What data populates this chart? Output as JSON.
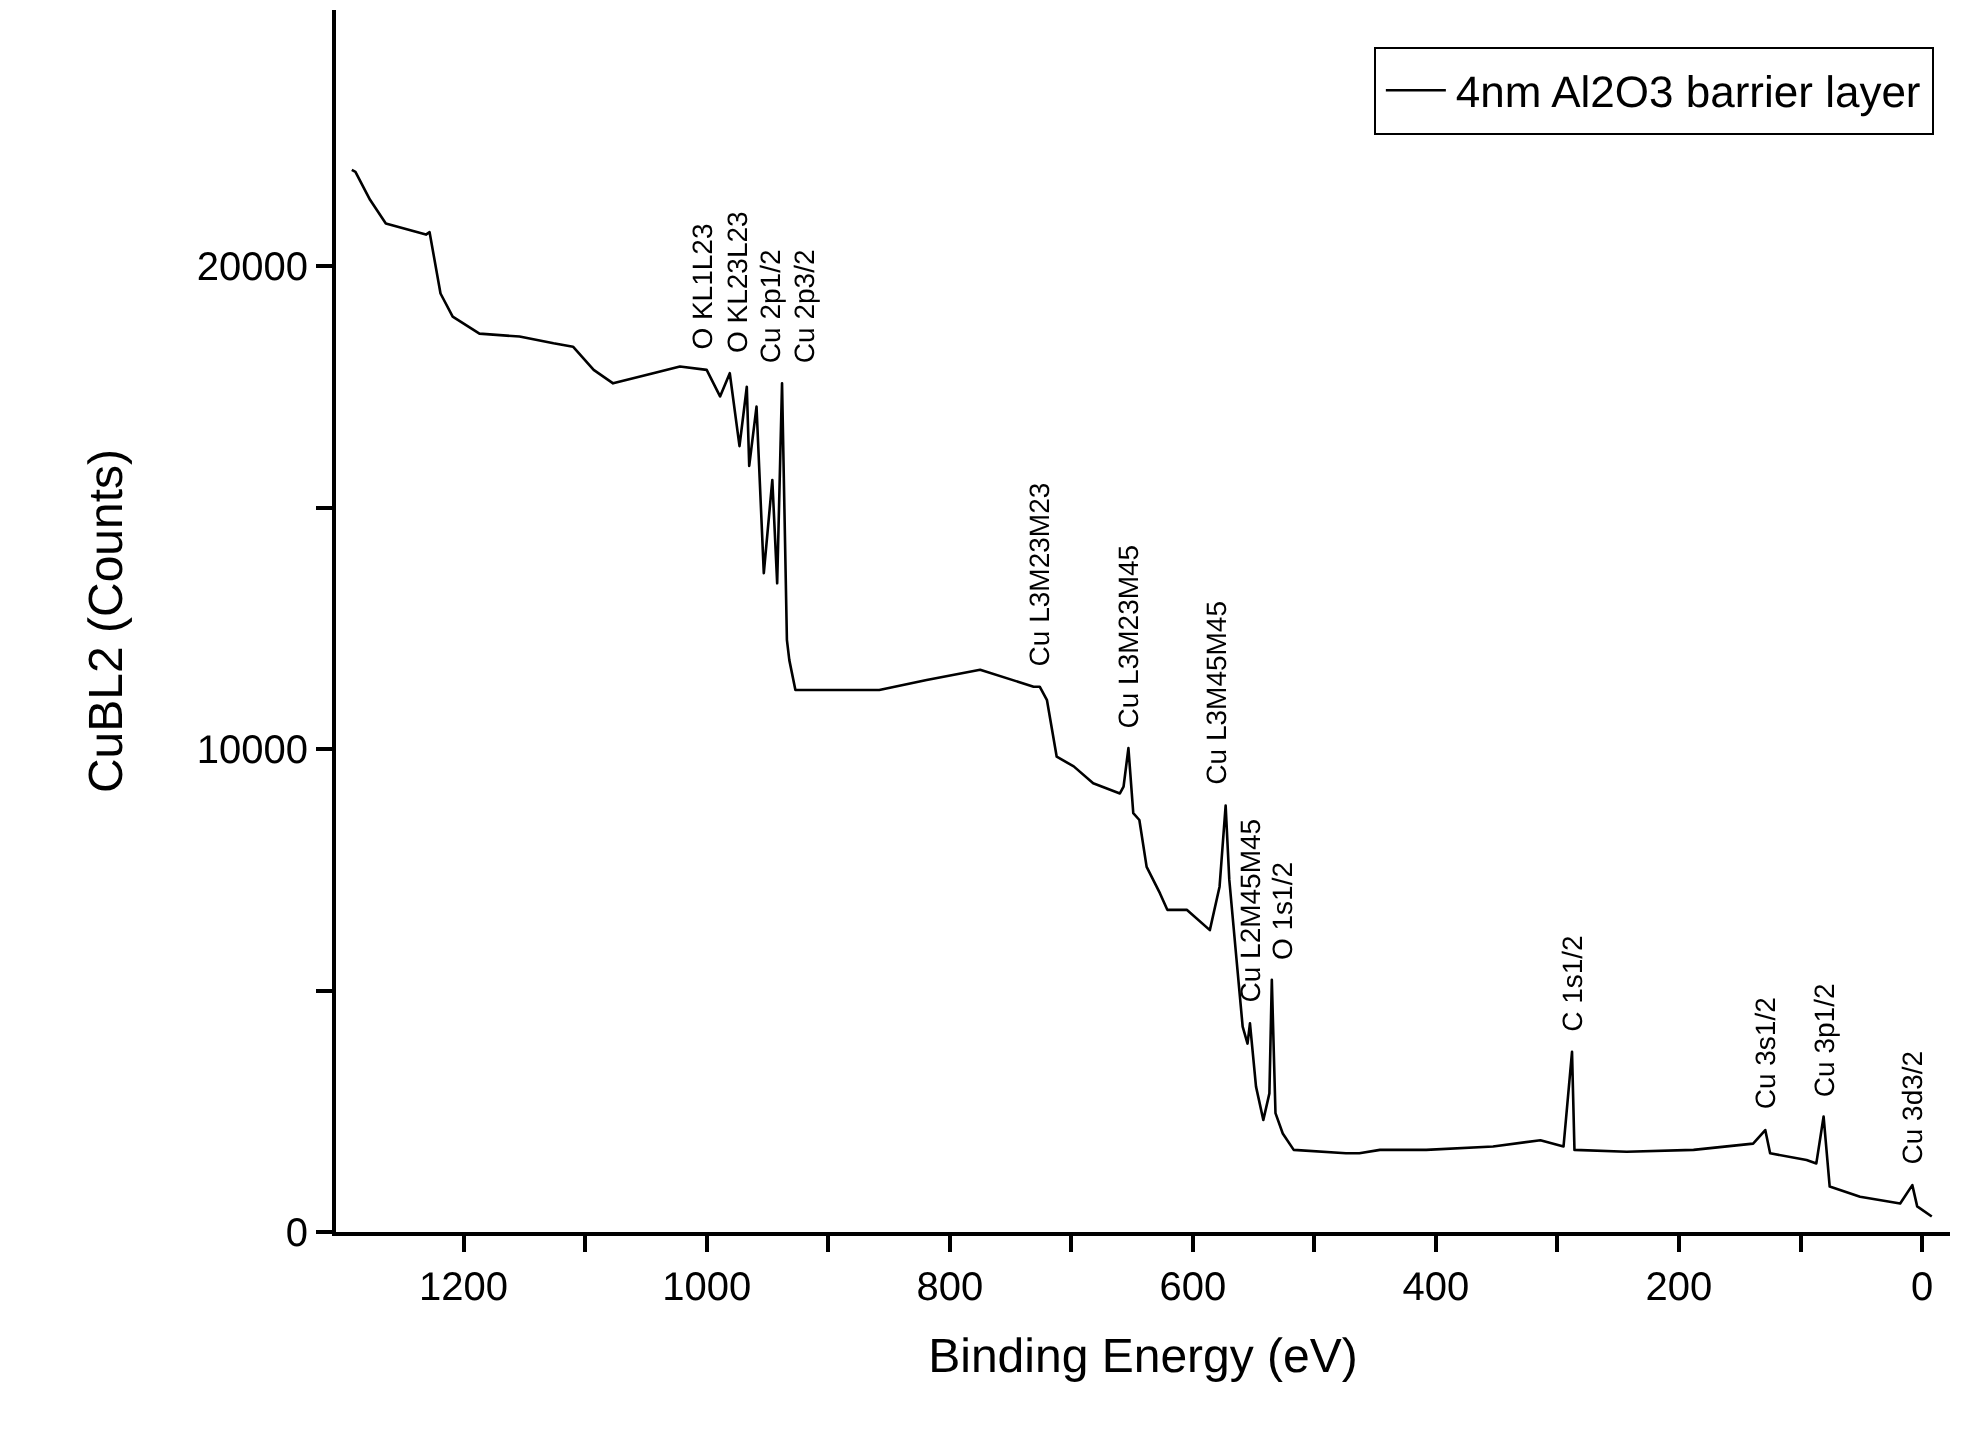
{
  "chart_data": {
    "type": "line",
    "xlabel": "Binding Energy (eV)",
    "ylabel": "CuBL2 (Counts)",
    "xlim": [
      1305,
      -23
    ],
    "ylim": [
      0,
      25300
    ],
    "xticks": [
      1200,
      {
        "value": 1100,
        "label": null
      },
      1000,
      {
        "value": 900,
        "label": null
      },
      800,
      {
        "value": 700,
        "label": null
      },
      600,
      {
        "value": 500,
        "label": null
      },
      400,
      {
        "value": 300,
        "label": null
      },
      200,
      {
        "value": 100,
        "label": null
      },
      0
    ],
    "yticks": [
      0,
      {
        "value": 5000,
        "label": null
      },
      10000,
      {
        "value": 15000,
        "label": null
      },
      20000
    ],
    "legend": "top right",
    "marker": "none",
    "line_style": "solid",
    "series": [
      {
        "name": "4nm Al2O3 barrier layer",
        "color": "#000000",
        "x": [
          1292,
          1289,
          1277,
          1264,
          1231,
          1228,
          1219,
          1209,
          1187,
          1154,
          1126,
          1110,
          1093,
          1077,
          1044,
          1022,
          1000,
          989,
          981,
          973,
          967,
          965,
          959,
          953,
          946,
          942,
          938,
          934,
          932,
          927,
          858,
          819,
          775,
          731,
          726,
          720,
          712,
          698,
          682,
          660,
          657,
          653,
          649,
          644,
          638,
          627,
          621,
          605,
          586,
          578,
          573,
          570,
          564,
          559,
          555,
          553,
          548,
          542,
          537,
          535,
          532,
          526,
          517,
          474,
          463,
          446,
          408,
          353,
          314,
          295,
          288,
          286,
          243,
          188,
          139,
          129,
          125,
          95,
          87,
          81,
          76,
          51,
          18,
          8,
          4,
          -8
        ],
        "values": [
          21990,
          21950,
          21370,
          20880,
          20650,
          20700,
          19430,
          18950,
          18600,
          18540,
          18400,
          18330,
          17850,
          17570,
          17780,
          17920,
          17850,
          17300,
          17780,
          16270,
          17500,
          15860,
          17090,
          13640,
          15570,
          13430,
          17570,
          12260,
          11840,
          11220,
          11220,
          11430,
          11640,
          11290,
          11290,
          11010,
          9840,
          9640,
          9290,
          9080,
          9220,
          10020,
          8670,
          8530,
          7560,
          7010,
          6670,
          6670,
          6250,
          7150,
          8830,
          7290,
          5630,
          4250,
          3900,
          4320,
          3010,
          2320,
          2870,
          5220,
          2460,
          2040,
          1700,
          1630,
          1630,
          1700,
          1700,
          1770,
          1900,
          1770,
          3730,
          1700,
          1660,
          1700,
          1830,
          2110,
          1630,
          1490,
          1420,
          2390,
          940,
          730,
          590,
          970,
          530,
          320
        ]
      }
    ],
    "annotations": [
      {
        "text": "O KL1L23",
        "x": 981,
        "y": 17780
      },
      {
        "text": "O KL23L23",
        "x": 967,
        "y": 17500
      },
      {
        "text": "Cu 2p1/2",
        "x": 959,
        "y": 17090
      },
      {
        "text": "Cu 2p3/2",
        "x": 938,
        "y": 17570
      },
      {
        "text": "Cu L3M23M23",
        "x": 726,
        "y": 11290
      },
      {
        "text": "Cu L3M23M45",
        "x": 653,
        "y": 10020
      },
      {
        "text": "Cu L3M45M45",
        "x": 573,
        "y": 8830
      },
      {
        "text": "Cu L2M45M45",
        "x": 553,
        "y": 4320
      },
      {
        "text": "O 1s1/2",
        "x": 535,
        "y": 5220
      },
      {
        "text": "C 1s1/2",
        "x": 288,
        "y": 3730
      },
      {
        "text": "Cu 3s1/2",
        "x": 129,
        "y": 2110
      },
      {
        "text": "Cu 3p1/2",
        "x": 81,
        "y": 2390
      },
      {
        "text": "Cu 3d3/2",
        "x": 8,
        "y": 970
      }
    ]
  }
}
